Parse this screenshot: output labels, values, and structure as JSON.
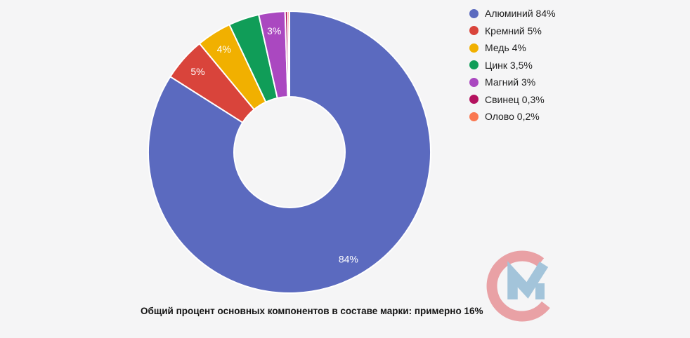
{
  "background_color": "#f5f5f6",
  "chart_data": {
    "type": "pie",
    "subtype": "donut",
    "start_angle_deg": 0,
    "direction": "clockwise",
    "hole_ratio": 0.393,
    "slice_border_color": "#ffffff",
    "slice_label_color": "#ffffff",
    "legend_position": "top-right",
    "title": "",
    "slices": [
      {
        "name": "Алюминий",
        "value": 84,
        "display": "84%",
        "legend_label": "Алюминий 84%",
        "slice_label": "84%",
        "color": "#5b6abf"
      },
      {
        "name": "Кремний",
        "value": 5,
        "display": "5%",
        "legend_label": "Кремний 5%",
        "slice_label": "5%",
        "color": "#d9443b"
      },
      {
        "name": "Медь",
        "value": 4,
        "display": "4%",
        "legend_label": "Медь 4%",
        "slice_label": "4%",
        "color": "#f1b000"
      },
      {
        "name": "Цинк",
        "value": 3.5,
        "display": "3,5%",
        "legend_label": "Цинк 3,5%",
        "slice_label": null,
        "color": "#109d58"
      },
      {
        "name": "Магний",
        "value": 3,
        "display": "3%",
        "legend_label": "Магний 3%",
        "slice_label": "3%",
        "color": "#aa48c0"
      },
      {
        "name": "Свинец",
        "value": 0.3,
        "display": "0,3%",
        "legend_label": "Свинец 0,3%",
        "slice_label": null,
        "color": "#b4125f"
      },
      {
        "name": "Олово",
        "value": 0.2,
        "display": "0,2%",
        "legend_label": "Олово 0,2%",
        "slice_label": null,
        "color": "#fa7750"
      }
    ]
  },
  "caption": {
    "text": "Общий процент основных компонентов в составе марки: примерно 16%"
  },
  "watermark": {
    "name": "CM check logo",
    "c_color": "#e9a1a5",
    "m_color": "#a3c4da"
  }
}
